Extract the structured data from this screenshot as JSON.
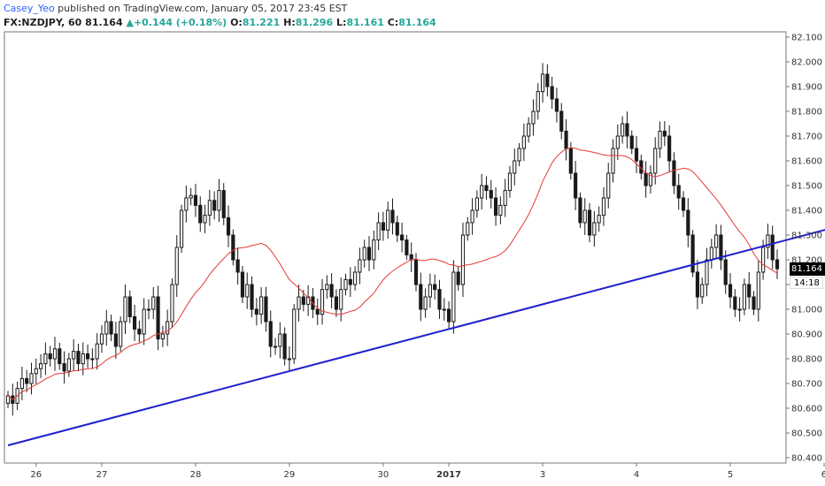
{
  "header": {
    "author": "Casey_Yeo",
    "published_text": " published on TradingView.com, January 05, 2017 23:45 EST",
    "symbol": "FX:NZDJPY, 60",
    "last": "81.164",
    "change": "+0.144 (+0.18%)",
    "o_label": "O:",
    "o_value": "81.221",
    "h_label": "H:",
    "h_value": "81.296",
    "l_label": "L:",
    "l_value": "81.161",
    "c_label": "C:",
    "c_value": "81.164"
  },
  "price_badge": "81.164",
  "timer_badge": "14:18",
  "colors": {
    "candle": "#1a1a1a",
    "ma": "#e53935",
    "trendline": "#1f1fcc",
    "axis": "#777777",
    "text": "#333333",
    "up_text": "#26a69a",
    "author": "#2962ff"
  },
  "chart_data": {
    "type": "candlestick",
    "symbol": "FX:NZDJPY",
    "interval": "60",
    "ylim": [
      80.4,
      82.1
    ],
    "y_ticks": [
      "82.100",
      "82.000",
      "81.900",
      "81.800",
      "81.700",
      "81.600",
      "81.500",
      "81.400",
      "81.300",
      "81.200",
      "81.100",
      "81.000",
      "80.900",
      "80.800",
      "80.700",
      "80.600",
      "80.500",
      "80.400"
    ],
    "x_ticks": [
      {
        "label": "26",
        "bar": 6
      },
      {
        "label": "27",
        "bar": 20
      },
      {
        "label": "28",
        "bar": 40
      },
      {
        "label": "29",
        "bar": 60
      },
      {
        "label": "30",
        "bar": 80
      },
      {
        "label": "2017",
        "bar": 94
      },
      {
        "label": "3",
        "bar": 114
      },
      {
        "label": "4",
        "bar": 134
      },
      {
        "label": "5",
        "bar": 154
      },
      {
        "label": "6",
        "bar": 174
      }
    ],
    "close": [
      80.65,
      80.62,
      80.68,
      80.72,
      80.7,
      80.74,
      80.76,
      80.78,
      80.82,
      80.8,
      80.84,
      80.78,
      80.75,
      80.8,
      80.83,
      80.78,
      80.82,
      80.8,
      80.8,
      80.86,
      80.9,
      80.95,
      80.9,
      80.85,
      80.95,
      81.05,
      80.97,
      80.92,
      80.9,
      81.0,
      81.0,
      81.05,
      80.88,
      80.9,
      80.95,
      81.1,
      81.25,
      81.4,
      81.45,
      81.46,
      81.42,
      81.35,
      81.38,
      81.44,
      81.4,
      81.48,
      81.37,
      81.3,
      81.2,
      81.15,
      81.05,
      81.1,
      81.0,
      80.98,
      81.05,
      80.95,
      80.85,
      80.85,
      80.9,
      80.8,
      80.8,
      81.0,
      81.05,
      81.02,
      81.05,
      81.0,
      80.98,
      81.08,
      81.1,
      81.05,
      81.0,
      81.08,
      81.12,
      81.1,
      81.15,
      81.2,
      81.25,
      81.2,
      81.28,
      81.35,
      81.32,
      81.4,
      81.35,
      81.3,
      81.28,
      81.22,
      81.2,
      81.1,
      81.0,
      81.05,
      81.1,
      81.08,
      81.0,
      81.0,
      80.95,
      81.15,
      81.1,
      81.3,
      81.35,
      81.4,
      81.45,
      81.5,
      81.48,
      81.45,
      81.38,
      81.42,
      81.48,
      81.55,
      81.6,
      81.65,
      81.7,
      81.75,
      81.8,
      81.88,
      81.95,
      81.9,
      81.85,
      81.8,
      81.72,
      81.65,
      81.55,
      81.45,
      81.35,
      81.4,
      81.3,
      81.35,
      81.38,
      81.45,
      81.55,
      81.65,
      81.7,
      81.75,
      81.7,
      81.65,
      81.6,
      81.55,
      81.5,
      81.55,
      81.65,
      81.72,
      81.7,
      81.6,
      81.5,
      81.45,
      81.4,
      81.3,
      81.15,
      81.05,
      81.1,
      81.2,
      81.25,
      81.3,
      81.2,
      81.1,
      81.05,
      81.0,
      81.0,
      81.1,
      81.05,
      81.0,
      81.15,
      81.25,
      81.3,
      81.2,
      81.164
    ],
    "ma_period": 20,
    "trendline": {
      "start": {
        "bar": 0,
        "price": 80.45
      },
      "end": {
        "bar": 186,
        "price": 81.38
      }
    }
  }
}
